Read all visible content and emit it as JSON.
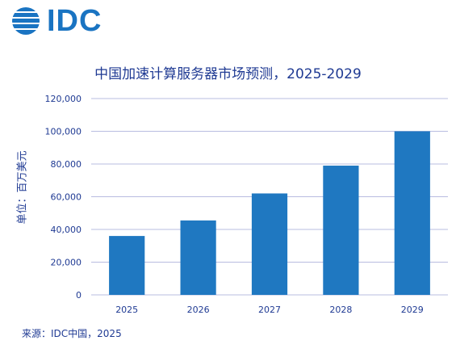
{
  "logo": {
    "text": "IDC"
  },
  "chart_data": {
    "type": "bar",
    "title": "中国加速计算服务器市场预测，2025-2029",
    "ylabel": "单位：百万美元",
    "xlabel": "",
    "categories": [
      "2025",
      "2026",
      "2027",
      "2028",
      "2029"
    ],
    "values": [
      36000,
      45500,
      62000,
      79000,
      100000
    ],
    "ylim": [
      0,
      120000
    ],
    "yticks": [
      0,
      20000,
      40000,
      60000,
      80000,
      100000,
      120000
    ],
    "ytick_labels": [
      "0",
      "20,000",
      "40,000",
      "60,000",
      "80,000",
      "100,000",
      "120,000"
    ],
    "grid": true,
    "bar_color": "#1f78c1"
  },
  "source": "来源：IDC中国，2025",
  "colors": {
    "brand": "#1a74c2",
    "text": "#1f3a93",
    "grid": "#b8bce0"
  }
}
